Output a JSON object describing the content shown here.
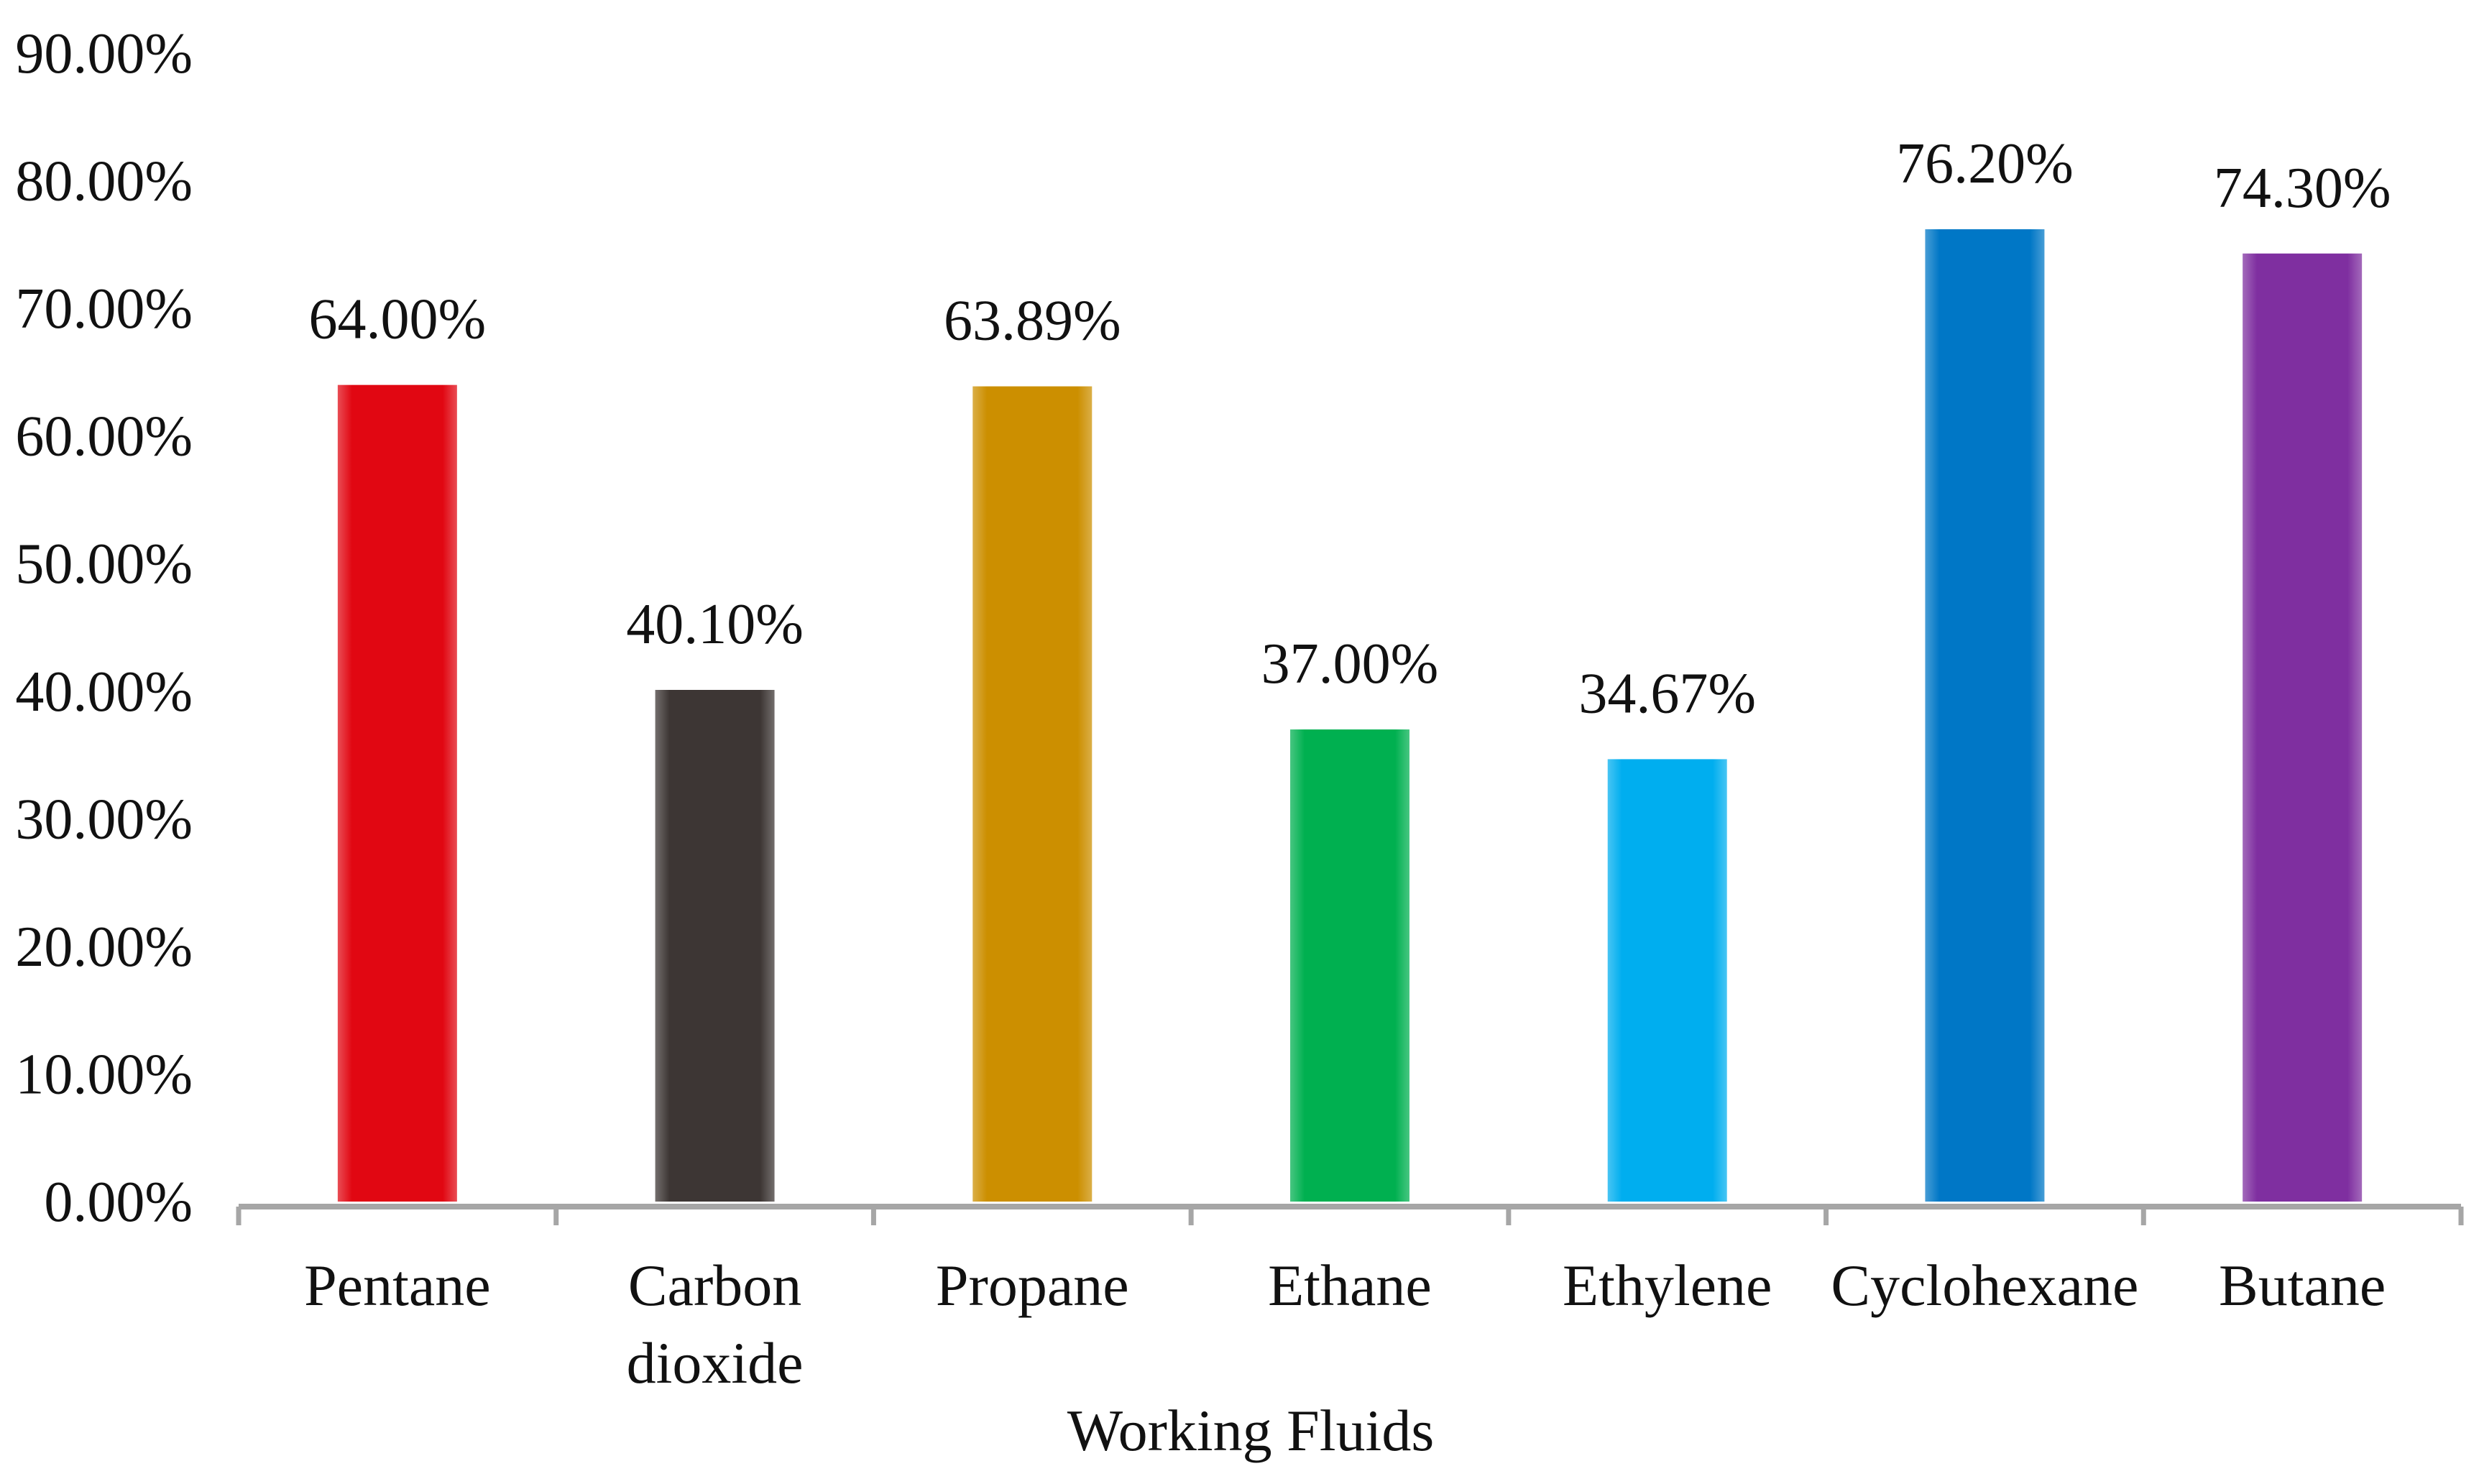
{
  "chart_data": {
    "type": "bar",
    "title": "",
    "xlabel": "Working Fluids",
    "ylabel": "",
    "ylim": [
      0,
      90
    ],
    "y_ticks": [
      "0.00%",
      "10.00%",
      "20.00%",
      "30.00%",
      "40.00%",
      "50.00%",
      "60.00%",
      "70.00%",
      "80.00%",
      "90.00%"
    ],
    "grid": false,
    "legend": "none",
    "categories": [
      [
        "Pentane"
      ],
      [
        "Carbon",
        "dioxide"
      ],
      [
        "Propane"
      ],
      [
        "Ethane"
      ],
      [
        "Ethylene"
      ],
      [
        "Cyclohexane"
      ],
      [
        "Butane"
      ]
    ],
    "values": [
      64.0,
      40.1,
      63.89,
      37.0,
      34.67,
      76.2,
      74.3
    ],
    "data_labels": [
      "64.00%",
      "40.10%",
      "63.89%",
      "37.00%",
      "34.67%",
      "76.20%",
      "74.30%"
    ],
    "colors": [
      "#e10712",
      "#3d3634",
      "#cc8f00",
      "#00b050",
      "#00aeef",
      "#0077c6",
      "#7f2fa0"
    ],
    "axis_color": "#a6a6a6"
  }
}
